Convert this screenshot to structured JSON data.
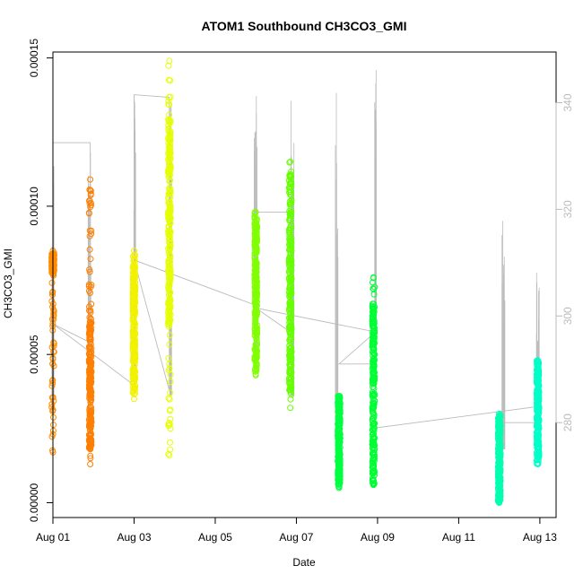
{
  "chart_data": {
    "type": "scatter",
    "title": "ATOM1 Southbound CH3CO3_GMI",
    "xlabel": "Date",
    "ylabel": "CH3CO3_GMI",
    "y2label": "",
    "xlim": [
      0,
      12.4
    ],
    "ylim": [
      -5e-06,
      0.000152
    ],
    "y2lim": [
      262.2,
      349.5
    ],
    "x_ticks": [
      {
        "value": 0,
        "label": "Aug 01"
      },
      {
        "value": 2,
        "label": "Aug 03"
      },
      {
        "value": 4,
        "label": "Aug 05"
      },
      {
        "value": 6,
        "label": "Aug 07"
      },
      {
        "value": 8,
        "label": "Aug 09"
      },
      {
        "value": 10,
        "label": "Aug 11"
      },
      {
        "value": 12,
        "label": "Aug 13"
      }
    ],
    "y_ticks": [
      {
        "value": 0,
        "label": "0.00000"
      },
      {
        "value": 5e-05,
        "label": "0.00005"
      },
      {
        "value": 0.0001,
        "label": "0.00010"
      },
      {
        "value": 0.00015,
        "label": "0.00015"
      }
    ],
    "y2_ticks": [
      {
        "value": 280,
        "label": "280"
      },
      {
        "value": 300,
        "label": "300"
      },
      {
        "value": 320,
        "label": "320"
      },
      {
        "value": 340,
        "label": "340"
      }
    ],
    "clusters": [
      {
        "x": 0.0,
        "ymin": 1.7e-05,
        "ymax": 8.5e-05,
        "dense_min": 7.8e-05,
        "dense_max": 8.4e-05,
        "color": "#ff8c00"
      },
      {
        "x": 0.92,
        "ymin": 1.3e-05,
        "ymax": 0.000109,
        "dense_min": 1.8e-05,
        "dense_max": 6.2e-05,
        "color": "#ff7f00"
      },
      {
        "x": 2.0,
        "ymin": 3.5e-05,
        "ymax": 8.5e-05,
        "dense_min": 3.7e-05,
        "dense_max": 8e-05,
        "color": "#f2f200"
      },
      {
        "x": 2.87,
        "ymin": 1.6e-05,
        "ymax": 0.000149,
        "dense_min": 6e-05,
        "dense_max": 0.00013,
        "color": "#e6ff00"
      },
      {
        "x": 5.0,
        "ymin": 4.3e-05,
        "ymax": 9.8e-05,
        "dense_min": 4.5e-05,
        "dense_max": 9.5e-05,
        "color": "#80ff00"
      },
      {
        "x": 5.85,
        "ymin": 3.2e-05,
        "ymax": 0.000115,
        "dense_min": 3.7e-05,
        "dense_max": 0.000112,
        "color": "#66ff00"
      },
      {
        "x": 7.05,
        "ymin": 5e-06,
        "ymax": 3.6e-05,
        "dense_min": 6e-06,
        "dense_max": 3.6e-05,
        "color": "#00ff40"
      },
      {
        "x": 7.9,
        "ymin": 6e-06,
        "ymax": 7.6e-05,
        "dense_min": 6e-06,
        "dense_max": 6.6e-05,
        "color": "#00ff33"
      },
      {
        "x": 11.0,
        "ymin": 0.0,
        "ymax": 3e-05,
        "dense_min": 0.0,
        "dense_max": 3e-05,
        "color": "#00ffb0"
      },
      {
        "x": 11.95,
        "ymin": 1.3e-05,
        "ymax": 4.8e-05,
        "dense_min": 1.5e-05,
        "dense_max": 4.8e-05,
        "color": "#00ffc8"
      }
    ],
    "secondary_series": {
      "color": "#bbbbbb",
      "spikes": [
        {
          "x": 0.0,
          "ymin": 282,
          "ymax": 333
        },
        {
          "x": 0.9,
          "ymin": 275,
          "ymax": 336
        },
        {
          "x": 2.0,
          "ymin": 290,
          "ymax": 343
        },
        {
          "x": 2.9,
          "ymin": 285,
          "ymax": 340
        },
        {
          "x": 5.0,
          "ymin": 290,
          "ymax": 350
        },
        {
          "x": 5.9,
          "ymin": 285,
          "ymax": 348
        },
        {
          "x": 7.0,
          "ymin": 280,
          "ymax": 342
        },
        {
          "x": 7.95,
          "ymin": 290,
          "ymax": 350
        },
        {
          "x": 11.1,
          "ymin": 275,
          "ymax": 318
        },
        {
          "x": 11.95,
          "ymin": 280,
          "ymax": 310
        }
      ],
      "path": [
        [
          0.0,
          332.5
        ],
        [
          0.92,
          332.5
        ],
        [
          0.92,
          295
        ],
        [
          0.0,
          298.5
        ],
        [
          2.0,
          287
        ],
        [
          2.0,
          341.5
        ],
        [
          2.87,
          341.0
        ],
        [
          2.87,
          286
        ],
        [
          2.0,
          310.5
        ],
        [
          5.0,
          302
        ],
        [
          5.0,
          319.5
        ],
        [
          5.85,
          319.5
        ],
        [
          5.85,
          297
        ],
        [
          5.0,
          301.5
        ],
        [
          7.95,
          297
        ],
        [
          7.05,
          291
        ],
        [
          7.95,
          291
        ],
        [
          7.95,
          279
        ],
        [
          11.95,
          283
        ],
        [
          11.95,
          280
        ],
        [
          11.1,
          280
        ]
      ]
    }
  }
}
